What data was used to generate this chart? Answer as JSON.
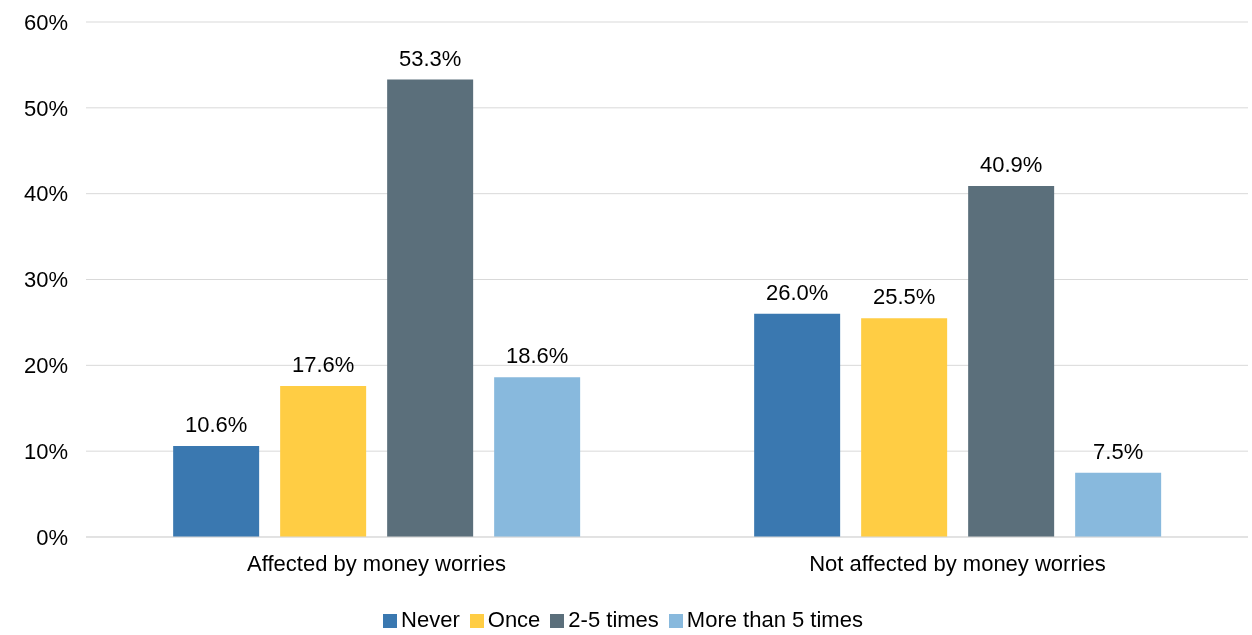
{
  "chart_data": {
    "type": "bar",
    "categories": [
      "Affected by money worries",
      "Not affected by money worries"
    ],
    "series": [
      {
        "name": "Never",
        "color": "#3a78b0",
        "values": [
          10.6,
          26.0
        ],
        "value_labels": [
          "10.6%",
          "26.0%"
        ]
      },
      {
        "name": "Once",
        "color": "#ffcd44",
        "values": [
          17.6,
          25.5
        ],
        "value_labels": [
          "17.6%",
          "25.5%"
        ]
      },
      {
        "name": "2-5 times",
        "color": "#5b6f7b",
        "values": [
          53.3,
          40.9
        ],
        "value_labels": [
          "53.3%",
          "40.9%"
        ]
      },
      {
        "name": "More than 5 times",
        "color": "#88b9dd",
        "values": [
          18.6,
          7.5
        ],
        "value_labels": [
          "18.6%",
          "7.5%"
        ]
      }
    ],
    "ylim": [
      0,
      60
    ],
    "yticks": [
      {
        "value": 0,
        "label": "0%"
      },
      {
        "value": 10,
        "label": "10%"
      },
      {
        "value": 20,
        "label": "20%"
      },
      {
        "value": 30,
        "label": "30%"
      },
      {
        "value": 40,
        "label": "40%"
      },
      {
        "value": 50,
        "label": "50%"
      },
      {
        "value": 60,
        "label": "60%"
      }
    ],
    "grid": "y",
    "legend": "bottom"
  }
}
